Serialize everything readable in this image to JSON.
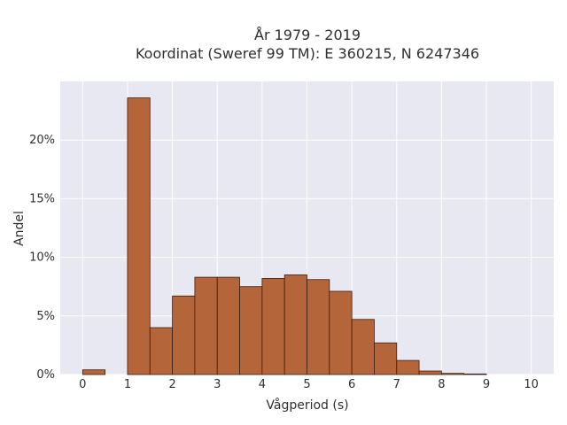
{
  "chart_data": {
    "type": "bar",
    "title_line1": "År 1979 - 2019",
    "title_line2": "Koordinat (Sweref 99 TM): E 360215, N 6247346",
    "xlabel": "Vågperiod (s)",
    "ylabel": "Andel",
    "bin_width": 0.5,
    "bins": [
      {
        "start": 0.0,
        "value": 0.4
      },
      {
        "start": 0.5,
        "value": 0.0
      },
      {
        "start": 1.0,
        "value": 23.6
      },
      {
        "start": 1.5,
        "value": 4.0
      },
      {
        "start": 2.0,
        "value": 6.7
      },
      {
        "start": 2.5,
        "value": 8.3
      },
      {
        "start": 3.0,
        "value": 8.3
      },
      {
        "start": 3.5,
        "value": 7.5
      },
      {
        "start": 4.0,
        "value": 8.2
      },
      {
        "start": 4.5,
        "value": 8.5
      },
      {
        "start": 5.0,
        "value": 8.1
      },
      {
        "start": 5.5,
        "value": 7.1
      },
      {
        "start": 6.0,
        "value": 4.7
      },
      {
        "start": 6.5,
        "value": 2.7
      },
      {
        "start": 7.0,
        "value": 1.2
      },
      {
        "start": 7.5,
        "value": 0.3
      },
      {
        "start": 8.0,
        "value": 0.1
      },
      {
        "start": 8.5,
        "value": 0.05
      }
    ],
    "xlim": [
      -0.5,
      10.5
    ],
    "ylim": [
      0,
      25
    ],
    "x_ticks": [
      0,
      1,
      2,
      3,
      4,
      5,
      6,
      7,
      8,
      9,
      10
    ],
    "x_tick_labels": [
      "0",
      "1",
      "2",
      "3",
      "4",
      "5",
      "6",
      "7",
      "8",
      "9",
      "10"
    ],
    "y_ticks": [
      0,
      5,
      10,
      15,
      20
    ],
    "y_tick_labels": [
      "0%",
      "5%",
      "10%",
      "15%",
      "20%"
    ],
    "grid": true,
    "colors": {
      "bar_fill": "#b5653a",
      "bar_stroke": "#3a1f10",
      "plot_bg": "#e8e8f2",
      "grid": "#ffffff"
    }
  }
}
